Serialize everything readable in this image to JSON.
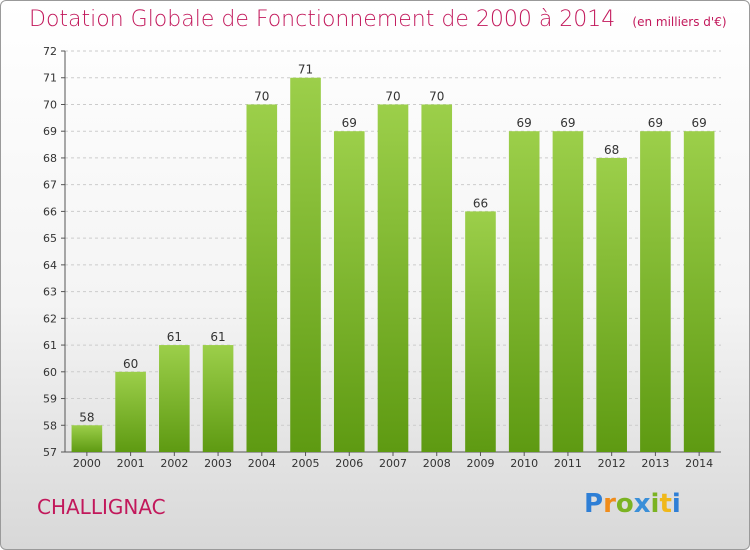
{
  "title": "Dotation Globale de Fonctionnement de 2000 à 2014",
  "unit_label": "(en milliers d'€)",
  "commune": "CHALLIGNAC",
  "logo": {
    "text": "Proxiti",
    "letters": [
      "P",
      "r",
      "o",
      "x",
      "i",
      "t",
      "i"
    ],
    "colors": [
      "#2e7fd6",
      "#f08c1a",
      "#7bb322",
      "#3a8fd8",
      "#7bb322",
      "#f0b81a",
      "#2e7fd6"
    ]
  },
  "colors": {
    "bar_light": "#9ccf4a",
    "bar_dark": "#5e9a12",
    "grid": "#cccccc",
    "title": "#c2185b"
  },
  "chart_data": {
    "type": "bar",
    "title": "Dotation Globale de Fonctionnement de 2000 à 2014",
    "subtitle": "(en milliers d'€)",
    "xlabel": "",
    "ylabel": "",
    "categories": [
      "2000",
      "2001",
      "2002",
      "2003",
      "2004",
      "2005",
      "2006",
      "2007",
      "2008",
      "2009",
      "2010",
      "2011",
      "2012",
      "2013",
      "2014"
    ],
    "values": [
      58,
      60,
      61,
      61,
      70,
      71,
      69,
      70,
      70,
      66,
      69,
      69,
      68,
      69,
      69
    ],
    "ylim": [
      57,
      72
    ],
    "yticks": [
      57,
      58,
      59,
      60,
      61,
      62,
      63,
      64,
      65,
      66,
      67,
      68,
      69,
      70,
      71,
      72
    ],
    "grid": true,
    "data_labels": true,
    "legend": "none"
  }
}
